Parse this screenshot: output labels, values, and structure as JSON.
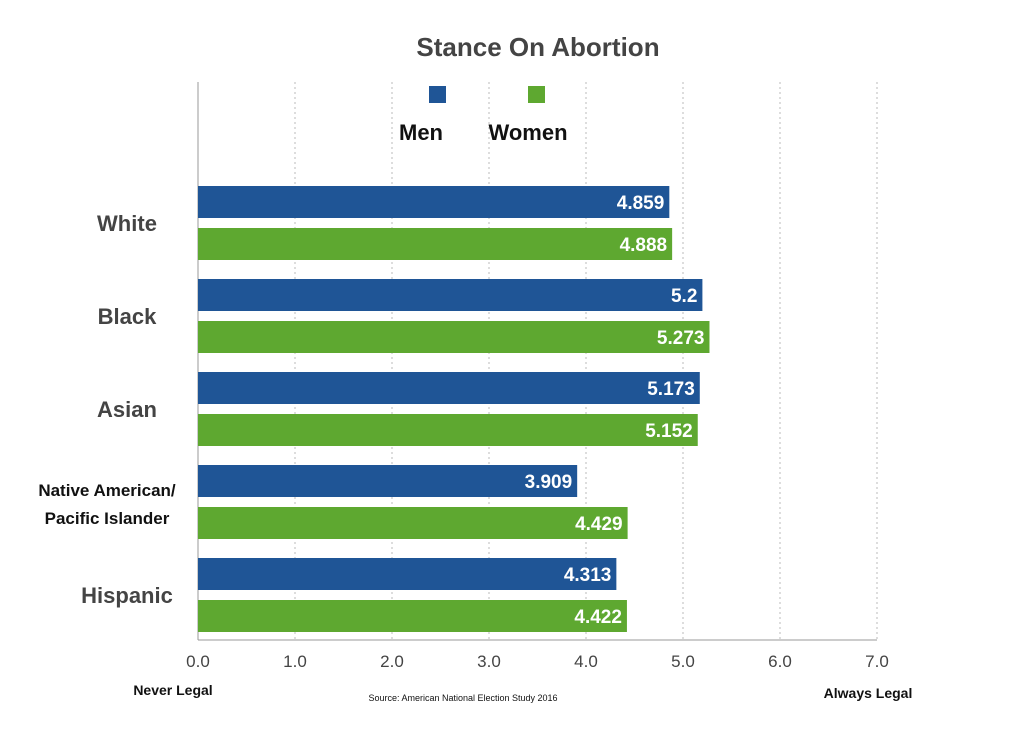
{
  "chart_data": {
    "type": "bar",
    "orientation": "horizontal",
    "title": "Stance On Abortion",
    "categories": [
      "White",
      "Black",
      "Asian",
      "Native American/\nPacific Islander",
      "Hispanic"
    ],
    "series": [
      {
        "name": "Men",
        "color": "#1f5596",
        "values": [
          4.859,
          5.2,
          5.173,
          3.909,
          4.313
        ],
        "labels": [
          "4.859",
          "5.2",
          "5.173",
          "3.909",
          "4.313"
        ]
      },
      {
        "name": "Women",
        "color": "#5ea830",
        "values": [
          4.888,
          5.273,
          5.152,
          4.429,
          4.422
        ],
        "labels": [
          "4.888",
          "5.273",
          "5.152",
          "4.429",
          "4.422"
        ]
      }
    ],
    "xlim": [
      0,
      7
    ],
    "xticks": [
      "0.0",
      "1.0",
      "2.0",
      "3.0",
      "4.0",
      "5.0",
      "6.0",
      "7.0"
    ],
    "grid": "vertical dotted",
    "legend": "top-center",
    "axis_end_labels": {
      "min": "Never Legal",
      "max": "Always Legal"
    },
    "source": "Source: American National Election Study 2016"
  }
}
